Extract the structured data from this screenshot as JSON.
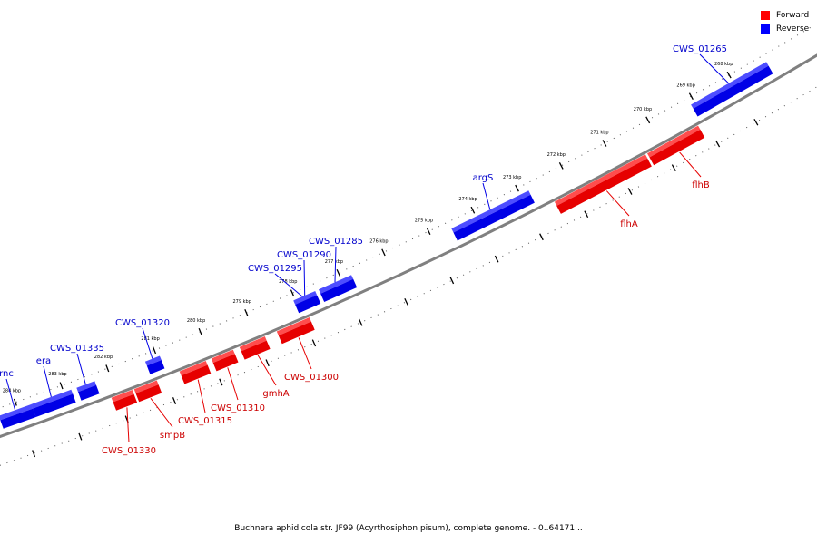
{
  "legend": {
    "items": [
      {
        "label": "Forward",
        "color": "#ff0000"
      },
      {
        "label": "Reverse",
        "color": "#0000ff"
      }
    ]
  },
  "caption": "Buchnera aphidicola str. JF99 (Acyrthosiphon pisum), complete genome. - 0..64171...",
  "colors": {
    "forward_face": "#e60000",
    "forward_top": "#ff4d4d",
    "forward_side": "#990000",
    "forward_label": "#cc0000",
    "reverse_face": "#0000e6",
    "reverse_top": "#4d4dff",
    "reverse_side": "#000099",
    "reverse_label": "#0000cc",
    "backbone": "#808080"
  },
  "ticks": [
    "268 kbp",
    "269 kbp",
    "270 kbp",
    "271 kbp",
    "272 kbp",
    "273 kbp",
    "274 kbp",
    "275 kbp",
    "276 kbp",
    "277 kbp",
    "278 kbp",
    "279 kbp",
    "280 kbp",
    "281 kbp",
    "282 kbp",
    "283 kbp",
    "284 kbp"
  ],
  "genes": [
    {
      "name": "CWS_01265",
      "strand": "reverse"
    },
    {
      "name": "argS",
      "strand": "reverse"
    },
    {
      "name": "CWS_01285",
      "strand": "reverse"
    },
    {
      "name": "CWS_01290",
      "strand": "reverse"
    },
    {
      "name": "CWS_01295",
      "strand": "reverse"
    },
    {
      "name": "CWS_01320",
      "strand": "reverse"
    },
    {
      "name": "CWS_01335",
      "strand": "reverse"
    },
    {
      "name": "era",
      "strand": "reverse"
    },
    {
      "name": "rnc",
      "strand": "reverse"
    },
    {
      "name": "flhB",
      "strand": "forward"
    },
    {
      "name": "flhA",
      "strand": "forward"
    },
    {
      "name": "CWS_01300",
      "strand": "forward"
    },
    {
      "name": "gmhA",
      "strand": "forward"
    },
    {
      "name": "CWS_01310",
      "strand": "forward"
    },
    {
      "name": "CWS_01315",
      "strand": "forward"
    },
    {
      "name": "smpB",
      "strand": "forward"
    },
    {
      "name": "CWS_01330",
      "strand": "forward"
    }
  ]
}
